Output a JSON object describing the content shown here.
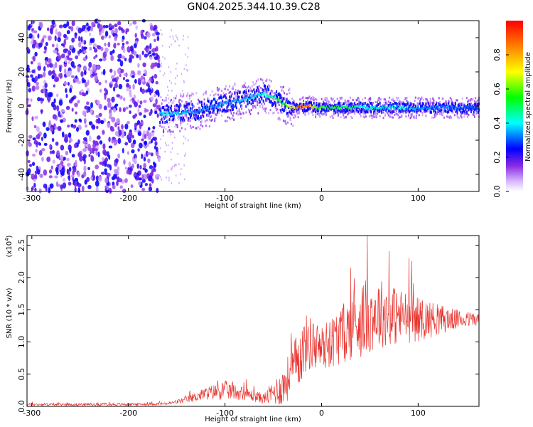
{
  "title": "GN04.2025.344.10.39.C28",
  "colors": {
    "snr_line": "#e8332e",
    "axis": "#000000"
  },
  "chart_data": [
    {
      "type": "heatmap",
      "xlabel": "Height of straight line (km)",
      "ylabel": "Frequency (Hz)",
      "xlim": [
        -305,
        163
      ],
      "ylim": [
        -50,
        50
      ],
      "xticks": [
        -300,
        -200,
        -100,
        0,
        100
      ],
      "yticks": [
        -40,
        -20,
        0,
        20,
        40
      ],
      "colorbar": {
        "label": "Normalized spectral amplitude",
        "range": [
          0,
          1
        ],
        "ticks": [
          0.0,
          0.2,
          0.4,
          0.6,
          0.8
        ],
        "tick_labels": [
          "0.0",
          "0.2",
          "0.4",
          "0.6",
          "0.8"
        ]
      },
      "noise_region": {
        "x_range": [
          -305,
          -168
        ],
        "y_range": [
          -50,
          50
        ],
        "amplitude": 0.2
      },
      "ridge": {
        "x": [
          -168,
          -150,
          -130,
          -110,
          -90,
          -75,
          -60,
          -50,
          -40,
          -30,
          -25,
          -15,
          -5,
          0,
          40,
          80,
          120,
          163
        ],
        "frequency": [
          -5,
          -4,
          -3,
          0,
          3,
          5,
          7,
          5,
          1,
          -1,
          -1,
          0,
          -1,
          -1,
          -1,
          -1,
          -1,
          -1
        ],
        "amplitude": [
          0.4,
          0.4,
          0.35,
          0.35,
          0.35,
          0.4,
          0.45,
          0.5,
          0.6,
          0.8,
          0.95,
          0.9,
          0.6,
          0.6,
          0.45,
          0.4,
          0.35,
          0.3
        ]
      }
    },
    {
      "type": "line",
      "xlabel": "Height of straight line (km)",
      "ylabel": "SNR (10 * v/v)",
      "y_multiplier": "(x10",
      "y_multiplier_exp": "4",
      "xlim": [
        -305,
        163
      ],
      "ylim": [
        0,
        2.65
      ],
      "xticks": [
        -300,
        -200,
        -100,
        0,
        100
      ],
      "yticks": [
        0.0,
        0.5,
        1.0,
        1.5,
        2.0,
        2.5
      ],
      "ytick_labels": [
        "0.0",
        "0.5",
        "1.0",
        "1.5",
        "2.0",
        "2.5"
      ],
      "series": [
        {
          "x": [
            -305,
            -250,
            -200,
            -160,
            -140,
            -120,
            -100,
            -80,
            -60,
            -40,
            -25,
            -15,
            0,
            20,
            40,
            60,
            80,
            100,
            120,
            140,
            163
          ],
          "mean": [
            0.03,
            0.03,
            0.03,
            0.04,
            0.1,
            0.2,
            0.25,
            0.2,
            0.12,
            0.3,
            0.7,
            1.0,
            0.9,
            1.1,
            1.35,
            1.45,
            1.4,
            1.35,
            1.35,
            1.35,
            1.35
          ],
          "spread": [
            0.02,
            0.02,
            0.02,
            0.02,
            0.05,
            0.1,
            0.15,
            0.1,
            0.08,
            0.3,
            0.45,
            0.45,
            0.35,
            0.45,
            0.6,
            0.55,
            0.45,
            0.35,
            0.25,
            0.15,
            0.1
          ]
        }
      ]
    }
  ]
}
